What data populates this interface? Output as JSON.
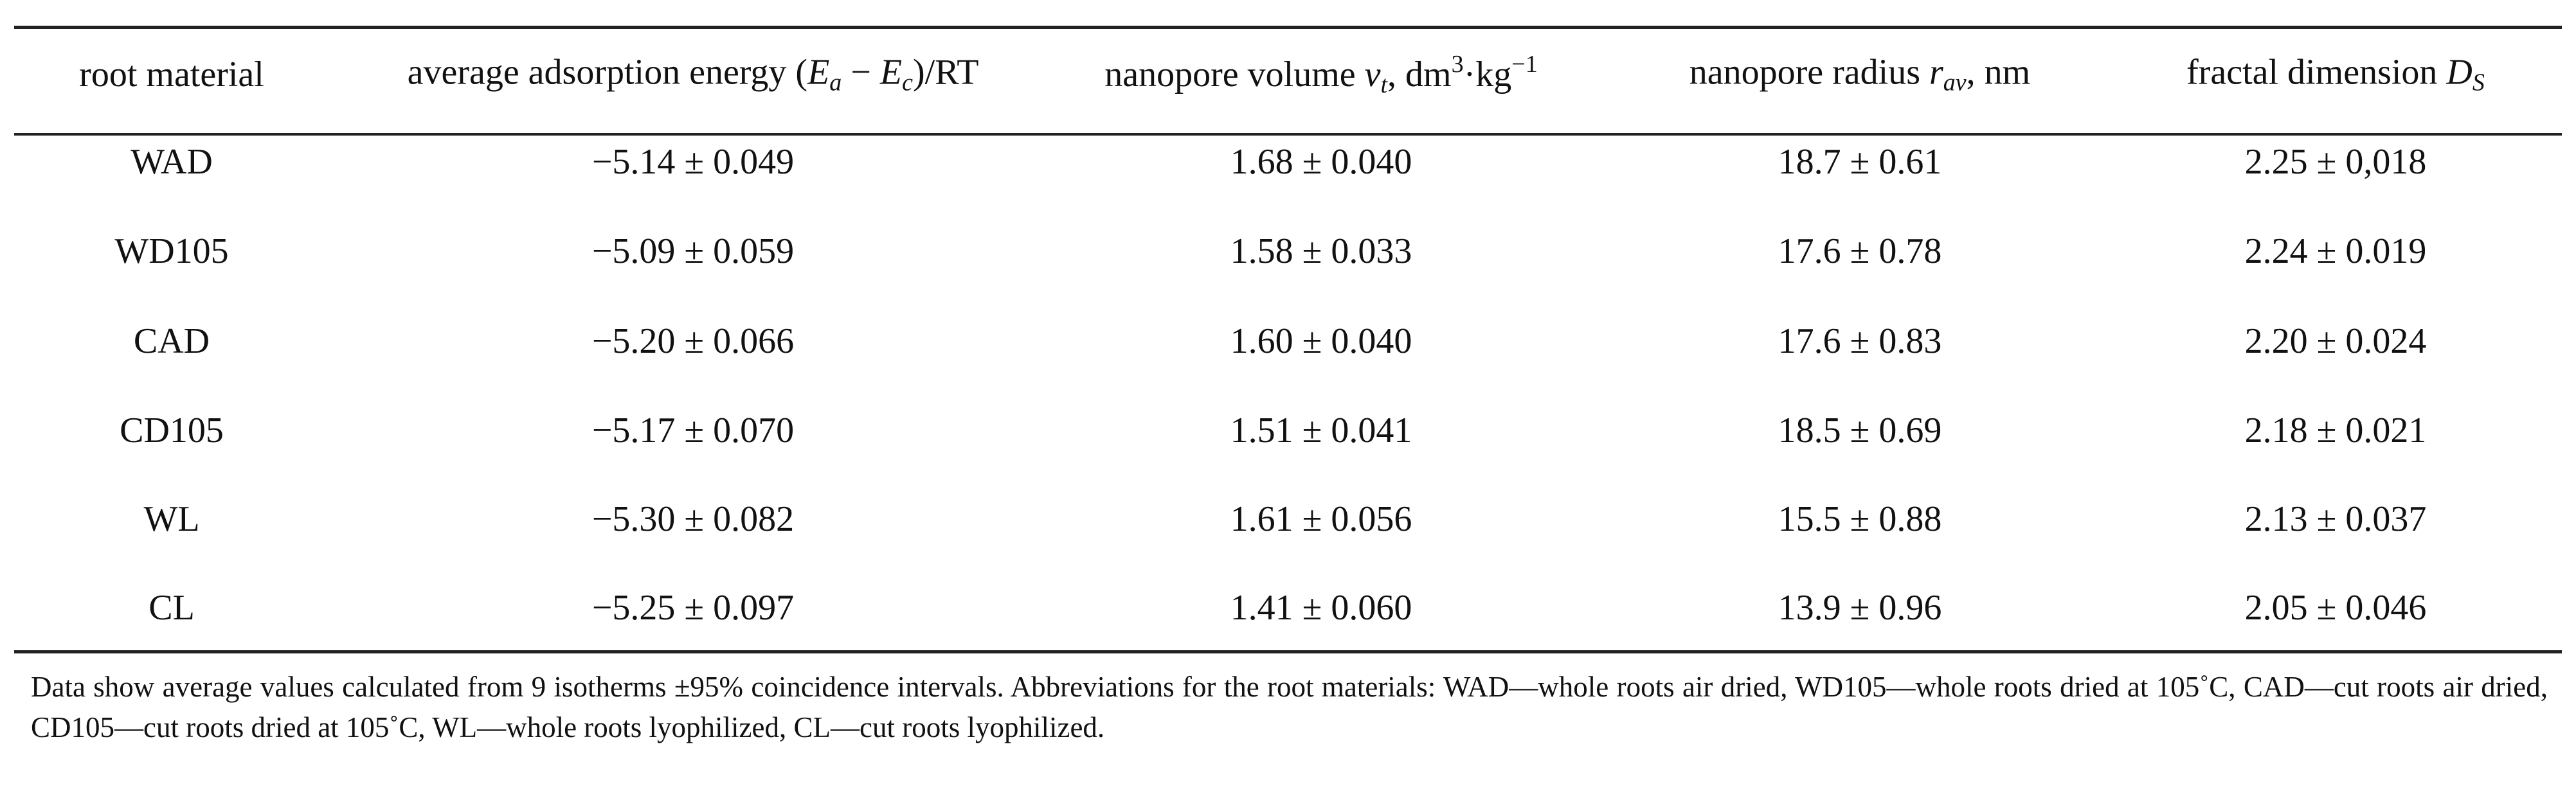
{
  "table": {
    "headers": {
      "root_material": "root material",
      "energy_prefix": "average adsorption energy (",
      "energy_Ea_E": "E",
      "energy_Ea_sub": "a",
      "energy_minus": " − ",
      "energy_Ec_E": "E",
      "energy_Ec_sub": "c",
      "energy_suffix": ")/RT",
      "volume_prefix": "nanopore volume ",
      "volume_symbol": "v",
      "volume_sub": "t",
      "volume_unit_a": ", dm",
      "volume_sup3": "3",
      "volume_unit_b": "·kg",
      "volume_sup_neg1": "−1",
      "radius_prefix": "nanopore radius ",
      "radius_symbol": "r",
      "radius_sub": "av",
      "radius_suffix": ", nm",
      "fractal_prefix": "fractal dimension ",
      "fractal_symbol": "D",
      "fractal_sub": "S"
    },
    "rows": [
      {
        "material": "WAD",
        "energy": "−5.14 ± 0.049",
        "volume": "1.68 ± 0.040",
        "radius": "18.7 ± 0.61",
        "fractal": "2.25 ± 0,018"
      },
      {
        "material": "WD105",
        "energy": "−5.09 ± 0.059",
        "volume": "1.58 ± 0.033",
        "radius": "17.6 ± 0.78",
        "fractal": "2.24 ± 0.019"
      },
      {
        "material": "CAD",
        "energy": "−5.20 ± 0.066",
        "volume": "1.60 ± 0.040",
        "radius": "17.6 ± 0.83",
        "fractal": "2.20 ± 0.024"
      },
      {
        "material": "CD105",
        "energy": "−5.17 ± 0.070",
        "volume": "1.51 ± 0.041",
        "radius": "18.5 ± 0.69",
        "fractal": "2.18 ± 0.021"
      },
      {
        "material": "WL",
        "energy": "−5.30 ± 0.082",
        "volume": "1.61 ± 0.056",
        "radius": "15.5 ± 0.88",
        "fractal": "2.13 ± 0.037"
      },
      {
        "material": "CL",
        "energy": "−5.25 ± 0.097",
        "volume": "1.41 ± 0.060",
        "radius": "13.9 ± 0.96",
        "fractal": "2.05 ± 0.046"
      }
    ]
  },
  "footnote": "Data show average values calculated from 9 isotherms ±95% coincidence intervals. Abbreviations for the root materials: WAD—whole roots air dried, WD105—whole roots dried at 105˚C, CAD—cut roots air dried, CD105—cut roots dried at 105˚C, WL—whole roots lyophilized, CL—cut roots lyophilized."
}
